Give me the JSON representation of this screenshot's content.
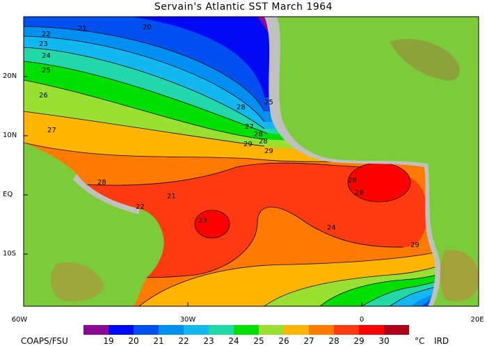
{
  "title": "Servain's Atlantic SST March 1964",
  "axes": {
    "lat_ticks": [
      "20N",
      "10N",
      "EQ",
      "10S"
    ],
    "lon_ticks": [
      "60W",
      "30W",
      "0",
      "20E"
    ]
  },
  "contour_labels": [
    "21",
    "20",
    "22",
    "23",
    "24",
    "25",
    "26",
    "27",
    "28",
    "21",
    "22",
    "23",
    "24",
    "25",
    "28",
    "27",
    "28",
    "28",
    "29",
    "29",
    "28",
    "29",
    "28"
  ],
  "colorbar": {
    "values": [
      "19",
      "20",
      "21",
      "22",
      "23",
      "24",
      "25",
      "26",
      "27",
      "28",
      "29",
      "30"
    ],
    "colors": [
      "#8a0a96",
      "#0008f4",
      "#0050f0",
      "#0090f2",
      "#12b8f0",
      "#20d8a8",
      "#00e000",
      "#9ae030",
      "#ffb400",
      "#ff7a00",
      "#ff3a10",
      "#ff0000",
      "#b00018"
    ],
    "unit": "°C"
  },
  "credits": {
    "left": "COAPS/FSU",
    "right": "IRD"
  },
  "colors": {
    "land": "#7ccc3a",
    "coast_gray": "#c0c0c0",
    "frame": "#000000"
  }
}
